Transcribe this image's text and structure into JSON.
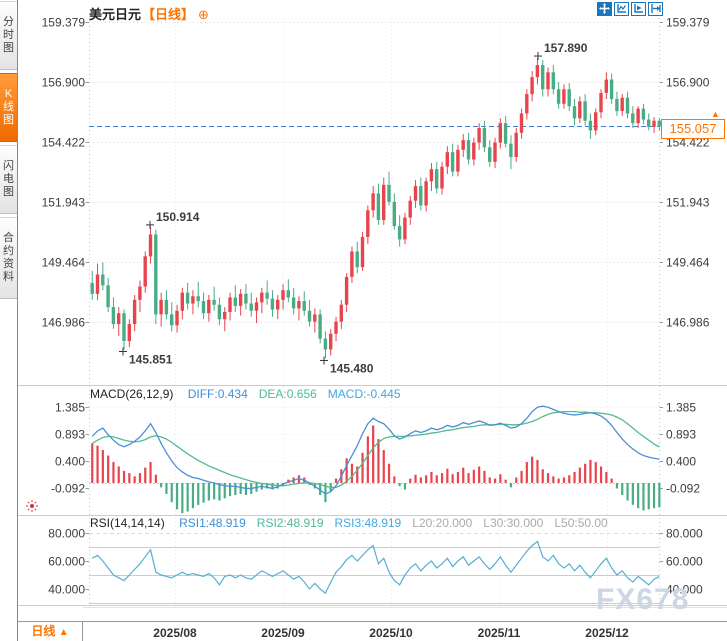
{
  "header": {
    "symbol": "美元日元",
    "period_tag": "【日线】",
    "settings_icon": "⊕"
  },
  "sidebar": {
    "items": [
      {
        "label": "分时图",
        "active": false
      },
      {
        "label": "K线图",
        "active": true
      },
      {
        "label": "闪电图",
        "active": false
      },
      {
        "label": "合约资料",
        "active": false
      }
    ]
  },
  "price_tag": {
    "value": "155.057",
    "arrow": "▲"
  },
  "bottom_bar": {
    "period_label": "日线",
    "arrow": "▲"
  },
  "watermark": {
    "text": "FX678"
  },
  "colors": {
    "up": "#e8444d",
    "down": "#48ac85",
    "accent": "#ff7300",
    "diff_line": "#4a90d9",
    "dea_line": "#53bb8e",
    "rsi_line": "#54aed6",
    "price_line": "#3a7fd5",
    "grid": "#d9d9d9",
    "tick": "#999999",
    "legend_blue": "#3f8fd8",
    "legend_teal": "#4db99e",
    "legend_cyan": "#41a8e0",
    "legend_gray": "#aaaaaa"
  },
  "chart_data": {
    "type": "candlestick+macd+rsi",
    "symbol": "美元日元",
    "period": "日线",
    "main": {
      "axis_labels": [
        "159.379",
        "156.900",
        "154.422",
        "151.943",
        "149.464",
        "146.986"
      ],
      "ylim": [
        145.4,
        159.9
      ],
      "last_price": 155.057,
      "annotations": [
        {
          "text": "157.890",
          "price": 157.89,
          "x": 538,
          "side": "above",
          "color": "up"
        },
        {
          "text": "150.914",
          "price": 150.914,
          "x": 150,
          "side": "above",
          "color": "up"
        },
        {
          "text": "145.851",
          "price": 145.851,
          "x": 123,
          "side": "below",
          "color": "down"
        },
        {
          "text": "145.480",
          "price": 145.48,
          "x": 324,
          "side": "below",
          "color": "down"
        }
      ],
      "candles": [
        [
          148.6,
          149.1,
          147.9,
          148.15
        ],
        [
          148.15,
          149.4,
          147.9,
          148.95
        ],
        [
          148.95,
          149.45,
          148.3,
          148.5
        ],
        [
          148.5,
          148.8,
          147.4,
          147.6
        ],
        [
          147.6,
          148.0,
          146.7,
          146.9
        ],
        [
          146.9,
          147.6,
          146.4,
          147.35
        ],
        [
          147.35,
          147.5,
          145.851,
          146.2
        ],
        [
          146.2,
          147.1,
          145.95,
          146.9
        ],
        [
          146.9,
          148.1,
          146.6,
          147.9
        ],
        [
          147.9,
          148.7,
          147.4,
          148.45
        ],
        [
          148.45,
          149.9,
          148.2,
          149.7
        ],
        [
          149.7,
          150.914,
          149.4,
          150.6
        ],
        [
          150.6,
          150.8,
          146.9,
          147.3
        ],
        [
          147.3,
          148.2,
          146.8,
          147.9
        ],
        [
          147.9,
          148.3,
          147.1,
          147.3
        ],
        [
          147.3,
          147.8,
          146.6,
          146.85
        ],
        [
          146.85,
          147.7,
          146.55,
          147.45
        ],
        [
          147.45,
          148.4,
          147.1,
          148.2
        ],
        [
          148.2,
          148.6,
          147.5,
          147.75
        ],
        [
          147.75,
          148.3,
          147.3,
          148.05
        ],
        [
          148.05,
          148.65,
          147.6,
          147.85
        ],
        [
          147.85,
          148.2,
          147.1,
          147.35
        ],
        [
          147.35,
          148.1,
          147.0,
          147.9
        ],
        [
          147.9,
          148.45,
          147.45,
          147.7
        ],
        [
          147.7,
          148.0,
          146.85,
          147.1
        ],
        [
          147.1,
          147.6,
          146.6,
          147.4
        ],
        [
          147.4,
          148.2,
          147.05,
          148.0
        ],
        [
          148.0,
          148.5,
          147.4,
          147.65
        ],
        [
          147.65,
          148.35,
          147.25,
          148.15
        ],
        [
          148.15,
          148.55,
          147.5,
          147.75
        ],
        [
          147.75,
          148.2,
          147.2,
          147.45
        ],
        [
          147.45,
          148.0,
          146.95,
          147.8
        ],
        [
          147.8,
          148.4,
          147.35,
          148.2
        ],
        [
          148.2,
          148.7,
          147.7,
          147.95
        ],
        [
          147.95,
          148.3,
          147.2,
          147.5
        ],
        [
          147.5,
          148.1,
          147.1,
          147.9
        ],
        [
          147.9,
          148.55,
          147.5,
          148.3
        ],
        [
          148.3,
          148.75,
          147.8,
          148.0
        ],
        [
          148.0,
          148.4,
          147.3,
          147.55
        ],
        [
          147.55,
          148.05,
          147.05,
          147.85
        ],
        [
          147.85,
          148.25,
          147.25,
          147.45
        ],
        [
          147.45,
          147.9,
          146.8,
          147.0
        ],
        [
          147.0,
          147.55,
          146.55,
          147.3
        ],
        [
          147.3,
          147.5,
          146.1,
          146.3
        ],
        [
          146.3,
          146.6,
          145.48,
          145.85
        ],
        [
          145.85,
          146.7,
          145.6,
          146.5
        ],
        [
          146.5,
          147.2,
          146.2,
          147.0
        ],
        [
          147.0,
          147.9,
          146.7,
          147.7
        ],
        [
          147.7,
          149.0,
          147.4,
          148.85
        ],
        [
          148.85,
          150.1,
          148.6,
          149.9
        ],
        [
          149.9,
          150.3,
          149.0,
          149.25
        ],
        [
          149.25,
          150.7,
          149.1,
          150.5
        ],
        [
          150.5,
          151.8,
          150.2,
          151.6
        ],
        [
          151.6,
          152.6,
          151.3,
          152.3
        ],
        [
          152.3,
          152.7,
          151.0,
          151.2
        ],
        [
          151.2,
          152.95,
          151.0,
          152.65
        ],
        [
          152.65,
          153.2,
          151.8,
          151.95
        ],
        [
          151.95,
          152.3,
          150.8,
          150.95
        ],
        [
          150.95,
          151.4,
          150.1,
          150.4
        ],
        [
          150.4,
          151.5,
          150.2,
          151.3
        ],
        [
          151.3,
          152.2,
          151.0,
          152.0
        ],
        [
          152.0,
          152.85,
          151.7,
          152.6
        ],
        [
          152.6,
          152.95,
          151.6,
          151.8
        ],
        [
          151.8,
          152.95,
          151.55,
          152.8
        ],
        [
          152.8,
          153.55,
          152.4,
          153.3
        ],
        [
          153.3,
          153.6,
          152.3,
          152.5
        ],
        [
          152.5,
          153.6,
          152.25,
          153.4
        ],
        [
          153.4,
          154.25,
          153.1,
          154.0
        ],
        [
          154.0,
          154.35,
          153.0,
          153.2
        ],
        [
          153.2,
          154.3,
          153.0,
          154.1
        ],
        [
          154.1,
          154.75,
          153.8,
          154.5
        ],
        [
          154.5,
          154.8,
          153.5,
          153.7
        ],
        [
          153.7,
          154.6,
          153.45,
          154.4
        ],
        [
          154.4,
          155.2,
          154.1,
          155.0
        ],
        [
          155.0,
          155.3,
          154.0,
          154.2
        ],
        [
          154.2,
          154.5,
          153.4,
          153.6
        ],
        [
          153.6,
          154.6,
          153.35,
          154.4
        ],
        [
          154.4,
          155.4,
          154.15,
          155.2
        ],
        [
          155.2,
          155.5,
          154.2,
          154.35
        ],
        [
          154.35,
          154.7,
          153.3,
          153.8
        ],
        [
          153.8,
          155.0,
          153.6,
          154.8
        ],
        [
          154.8,
          155.8,
          154.55,
          155.6
        ],
        [
          155.6,
          156.6,
          155.35,
          156.4
        ],
        [
          156.4,
          157.35,
          156.1,
          157.1
        ],
        [
          157.1,
          157.89,
          156.8,
          157.6
        ],
        [
          157.6,
          157.8,
          156.3,
          156.6
        ],
        [
          156.6,
          157.5,
          156.3,
          157.3
        ],
        [
          157.3,
          157.6,
          156.4,
          156.6
        ],
        [
          156.6,
          156.9,
          155.8,
          156.0
        ],
        [
          156.0,
          156.8,
          155.8,
          156.6
        ],
        [
          156.6,
          156.85,
          155.7,
          155.9
        ],
        [
          155.9,
          156.2,
          155.1,
          155.4
        ],
        [
          155.4,
          156.3,
          155.2,
          156.1
        ],
        [
          156.1,
          156.4,
          155.1,
          155.3
        ],
        [
          155.3,
          155.6,
          154.55,
          154.9
        ],
        [
          154.9,
          155.8,
          154.7,
          155.65
        ],
        [
          155.65,
          156.6,
          155.4,
          156.45
        ],
        [
          156.45,
          157.3,
          156.2,
          157.0
        ],
        [
          157.0,
          157.25,
          156.0,
          156.2
        ],
        [
          156.2,
          156.5,
          155.5,
          155.7
        ],
        [
          155.7,
          156.4,
          155.5,
          156.25
        ],
        [
          156.25,
          156.5,
          155.4,
          155.6
        ],
        [
          155.6,
          155.9,
          155.0,
          155.2
        ],
        [
          155.2,
          155.9,
          155.0,
          155.8
        ],
        [
          155.8,
          156.0,
          155.15,
          155.35
        ],
        [
          155.35,
          155.6,
          154.9,
          155.05
        ],
        [
          155.05,
          155.45,
          154.8,
          155.3
        ],
        [
          155.3,
          155.4,
          154.9,
          155.057
        ]
      ]
    },
    "macd": {
      "title": "MACD(26,12,9)",
      "legend": [
        {
          "label": "DIFF:0.434",
          "color": "#3f8fd8"
        },
        {
          "label": "DEA:0.656",
          "color": "#4db99e"
        },
        {
          "label": "MACD:-0.445",
          "color": "#41a8e0"
        }
      ],
      "axis_labels": [
        "1.385",
        "0.893",
        "0.400",
        "-0.092"
      ],
      "diff": [
        0.85,
        0.95,
        1.0,
        0.88,
        0.78,
        0.7,
        0.66,
        0.7,
        0.76,
        0.84,
        0.95,
        1.08,
        0.92,
        0.72,
        0.55,
        0.4,
        0.28,
        0.2,
        0.14,
        0.1,
        0.08,
        0.05,
        0.02,
        0.0,
        -0.03,
        -0.05,
        -0.06,
        -0.06,
        -0.08,
        -0.1,
        -0.1,
        -0.08,
        -0.06,
        -0.08,
        -0.1,
        -0.07,
        -0.02,
        0.02,
        0.05,
        0.08,
        0.05,
        0.0,
        -0.06,
        -0.13,
        -0.2,
        -0.16,
        -0.05,
        0.12,
        0.32,
        0.5,
        0.68,
        0.9,
        1.08,
        1.18,
        1.12,
        1.08,
        0.98,
        0.86,
        0.8,
        0.84,
        0.9,
        0.95,
        0.92,
        0.95,
        1.0,
        0.97,
        1.0,
        1.05,
        1.02,
        1.05,
        1.1,
        1.07,
        1.1,
        1.13,
        1.1,
        1.05,
        1.06,
        1.09,
        1.05,
        1.0,
        1.02,
        1.08,
        1.18,
        1.3,
        1.38,
        1.4,
        1.38,
        1.34,
        1.3,
        1.27,
        1.25,
        1.24,
        1.25,
        1.27,
        1.28,
        1.26,
        1.22,
        1.15,
        1.05,
        0.92,
        0.8,
        0.7,
        0.62,
        0.55,
        0.5,
        0.47,
        0.45,
        0.434
      ],
      "dea": [
        0.72,
        0.78,
        0.83,
        0.85,
        0.84,
        0.81,
        0.78,
        0.76,
        0.75,
        0.76,
        0.79,
        0.84,
        0.86,
        0.84,
        0.8,
        0.74,
        0.67,
        0.6,
        0.53,
        0.47,
        0.41,
        0.36,
        0.31,
        0.27,
        0.23,
        0.19,
        0.15,
        0.12,
        0.09,
        0.06,
        0.03,
        0.01,
        -0.01,
        -0.02,
        -0.04,
        -0.05,
        -0.05,
        -0.04,
        -0.02,
        -0.01,
        0.0,
        0.0,
        -0.01,
        -0.03,
        -0.06,
        -0.08,
        -0.08,
        -0.04,
        0.03,
        0.12,
        0.23,
        0.36,
        0.5,
        0.64,
        0.74,
        0.81,
        0.84,
        0.85,
        0.85,
        0.85,
        0.86,
        0.87,
        0.88,
        0.89,
        0.91,
        0.92,
        0.94,
        0.96,
        0.97,
        0.99,
        1.01,
        1.02,
        1.03,
        1.05,
        1.06,
        1.06,
        1.06,
        1.07,
        1.07,
        1.06,
        1.06,
        1.07,
        1.09,
        1.12,
        1.16,
        1.21,
        1.25,
        1.28,
        1.29,
        1.3,
        1.3,
        1.3,
        1.29,
        1.29,
        1.28,
        1.28,
        1.27,
        1.26,
        1.24,
        1.2,
        1.15,
        1.08,
        1.0,
        0.92,
        0.85,
        0.78,
        0.71,
        0.656
      ],
      "hist": [
        0.72,
        0.68,
        0.6,
        0.5,
        0.38,
        0.3,
        0.22,
        0.18,
        0.12,
        0.18,
        0.28,
        0.38,
        0.15,
        -0.08,
        -0.2,
        -0.35,
        -0.48,
        -0.55,
        -0.52,
        -0.46,
        -0.4,
        -0.36,
        -0.32,
        -0.3,
        -0.32,
        -0.28,
        -0.24,
        -0.22,
        -0.2,
        -0.22,
        -0.2,
        -0.16,
        -0.12,
        -0.1,
        -0.12,
        -0.1,
        -0.06,
        0.06,
        0.1,
        0.14,
        0.1,
        -0.04,
        -0.1,
        -0.22,
        -0.35,
        -0.15,
        0.08,
        0.25,
        0.45,
        0.35,
        0.3,
        0.55,
        0.85,
        1.05,
        0.8,
        0.6,
        0.35,
        0.12,
        -0.06,
        -0.12,
        0.08,
        0.15,
        0.1,
        0.14,
        0.2,
        0.14,
        0.18,
        0.26,
        0.16,
        0.2,
        0.28,
        0.18,
        0.24,
        0.3,
        0.22,
        0.1,
        0.08,
        0.16,
        0.06,
        -0.08,
        0.1,
        0.22,
        0.38,
        0.48,
        0.42,
        0.25,
        0.18,
        0.12,
        0.08,
        0.1,
        0.14,
        0.2,
        0.28,
        0.35,
        0.42,
        0.38,
        0.3,
        0.2,
        0.08,
        -0.1,
        -0.22,
        -0.32,
        -0.4,
        -0.46,
        -0.5,
        -0.48,
        -0.46,
        -0.445
      ]
    },
    "rsi": {
      "title": "RSI(14,14,14)",
      "legend": [
        {
          "label": "RSI1:48.919",
          "color": "#3f8fd8"
        },
        {
          "label": "RSI2:48.919",
          "color": "#4db99e"
        },
        {
          "label": "RSI3:48.919",
          "color": "#41a8e0"
        },
        {
          "label": "L20:20.000",
          "color": "#aaaaaa"
        },
        {
          "label": "L30:30.000",
          "color": "#aaaaaa"
        },
        {
          "label": "L50:50.00",
          "color": "#aaaaaa"
        }
      ],
      "axis_labels": [
        "80.000",
        "60.000",
        "40.000"
      ],
      "values": [
        62,
        64,
        60,
        55,
        50,
        48,
        46,
        50,
        54,
        58,
        63,
        68,
        52,
        50,
        49,
        48,
        50,
        52,
        50,
        51,
        50,
        49,
        51,
        48,
        43,
        49,
        50,
        48,
        50,
        48,
        47,
        50,
        53,
        51,
        49,
        51,
        53,
        50,
        47,
        49,
        45,
        40,
        44,
        40,
        37,
        45,
        52,
        56,
        61,
        64,
        60,
        64,
        68,
        71,
        58,
        62,
        52,
        46,
        43,
        50,
        55,
        58,
        53,
        57,
        60,
        55,
        58,
        62,
        56,
        60,
        63,
        57,
        60,
        63,
        58,
        54,
        58,
        63,
        57,
        52,
        57,
        62,
        67,
        71,
        74,
        63,
        60,
        64,
        58,
        55,
        58,
        53,
        57,
        52,
        48,
        53,
        58,
        62,
        55,
        50,
        53,
        48,
        45,
        49,
        46,
        43,
        47,
        48.9
      ]
    },
    "x_axis": {
      "labels": [
        "2025/08",
        "2025/09",
        "2025/10",
        "2025/11",
        "2025/12"
      ]
    }
  }
}
